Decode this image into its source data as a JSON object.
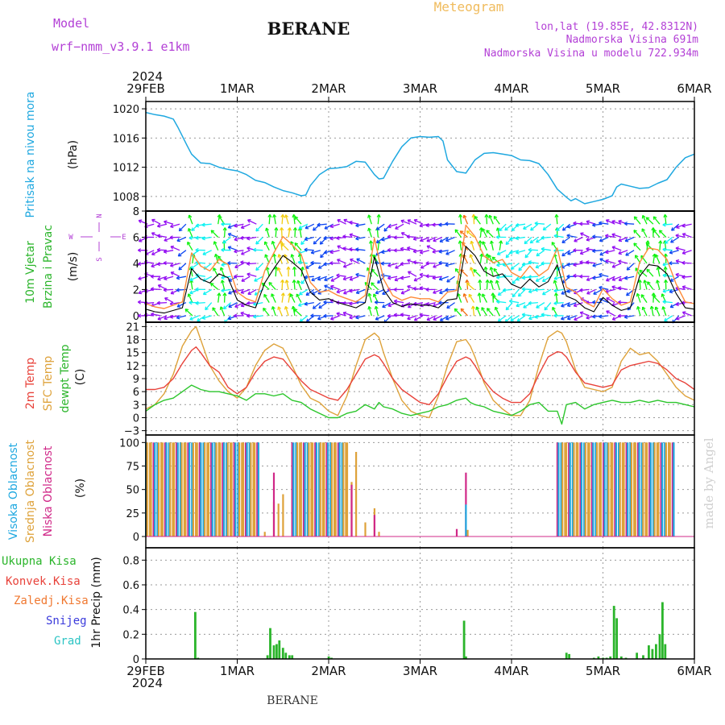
{
  "header": {
    "model_label": "Model",
    "model_name": "wrf−nmm_v3.9.1  e1km",
    "station": "BERANE",
    "meteogram": "Meteogram",
    "lonlat": "lon,lat (19.85E, 42.8312N)",
    "altitude": "Nadmorska Visina 691m",
    "model_altitude": "Nadmorska Visina u modelu 722.934m",
    "year_top": "2024",
    "year_bottom": "2024",
    "footer_station": "BERANE",
    "credit": "made by Angel"
  },
  "time_axis": {
    "labels": [
      "29FEB",
      "1MAR",
      "2MAR",
      "3MAR",
      "4MAR",
      "5MAR",
      "6MAR"
    ]
  },
  "panels": {
    "pressure": {
      "name": "Pritisak na nivou mora",
      "unit": "(hPa)",
      "ticks": [
        "1020",
        "1016",
        "1012",
        "1008"
      ],
      "color": "#1fa8e0"
    },
    "wind": {
      "name1": "10m Vjetar",
      "name2": "Brzina i Pravac",
      "unit": "(m/s)",
      "ticks": [
        "8",
        "6",
        "4",
        "2",
        "0"
      ],
      "compass": {
        "n": "N",
        "s": "S",
        "e": "E",
        "w": "W"
      }
    },
    "temp": {
      "t2m": "2m Temp",
      "sfc": "SFC Temp",
      "dew": "dewpt Temp",
      "unit": "(C)",
      "ticks": [
        "21",
        "18",
        "15",
        "12",
        "9",
        "6",
        "3",
        "0",
        "−3"
      ],
      "colors": {
        "t2m": "#e8423a",
        "sfc": "#dea23a",
        "dew": "#2cc62c"
      }
    },
    "cloud": {
      "high": "Visoka Oblacnost",
      "mid": "Srednja Oblacnost",
      "low": "Niska Oblacnost",
      "unit": "(%)",
      "ticks": [
        "100",
        "75",
        "50",
        "25",
        "0"
      ],
      "colors": {
        "high": "#1fa8e0",
        "mid": "#dea23a",
        "low": "#d02888"
      }
    },
    "precip": {
      "total": "Ukupna Kisa",
      "conv": "Konvek.Kisa",
      "frz": "Zaledj.Kisa",
      "snow": "Snijeg",
      "hail": "Grad",
      "unit": "1hr Precip (mm)",
      "ticks": [
        "0.8",
        "0.6",
        "0.4",
        "0.2",
        "0"
      ],
      "colors": {
        "total": "#2bb52b",
        "conv": "#e8423a",
        "frz": "#f07830",
        "snow": "#3b3bdc",
        "hail": "#2cc4c4"
      }
    }
  },
  "chart_data": [
    {
      "type": "line",
      "ylabel": "(hPa)",
      "ylim": [
        1006,
        1021
      ],
      "x_days": [
        0,
        0.1,
        0.2,
        0.3,
        0.35,
        0.45,
        0.5,
        0.6,
        0.7,
        0.8,
        0.9,
        1.0,
        1.1,
        1.2,
        1.3,
        1.4,
        1.5,
        1.6,
        1.7,
        1.75,
        1.8,
        1.9,
        2.0,
        2.1,
        2.2,
        2.3,
        2.4,
        2.5,
        2.55,
        2.6,
        2.7,
        2.8,
        2.9,
        3.0,
        3.1,
        3.2,
        3.25,
        3.3,
        3.4,
        3.5,
        3.6,
        3.7,
        3.8,
        3.9,
        4.0,
        4.1,
        4.2,
        4.3,
        4.4,
        4.5,
        4.6,
        4.65,
        4.7,
        4.8,
        4.9,
        5.0,
        5.1,
        5.15,
        5.2,
        5.3,
        5.4,
        5.5,
        5.6,
        5.7,
        5.8,
        5.9,
        6.0
      ],
      "series": [
        {
          "values": [
            1019.5,
            1019.2,
            1019.0,
            1018.6,
            1017.5,
            1015.0,
            1013.8,
            1012.6,
            1012.5,
            1012.0,
            1011.7,
            1011.5,
            1011.0,
            1010.2,
            1009.9,
            1009.3,
            1008.8,
            1008.5,
            1008.1,
            1008.2,
            1009.5,
            1011.0,
            1011.8,
            1011.9,
            1012.1,
            1012.8,
            1012.7,
            1011.0,
            1010.4,
            1010.5,
            1012.8,
            1014.8,
            1016.0,
            1016.2,
            1016.1,
            1016.2,
            1015.6,
            1013.0,
            1011.4,
            1011.2,
            1013.0,
            1013.9,
            1014.0,
            1013.8,
            1013.6,
            1013.0,
            1012.9,
            1012.5,
            1011.0,
            1009.0,
            1007.9,
            1007.4,
            1007.7,
            1007.0,
            1007.3,
            1007.6,
            1008.1,
            1009.3,
            1009.7,
            1009.4,
            1009.1,
            1009.2,
            1009.8,
            1010.3,
            1012.0,
            1013.3,
            1013.8
          ]
        }
      ]
    },
    {
      "type": "line",
      "ylabel": "(m/s)",
      "ylim": [
        -0.5,
        8
      ],
      "x_days": [
        0,
        0.1,
        0.2,
        0.3,
        0.4,
        0.5,
        0.6,
        0.7,
        0.8,
        0.9,
        1.0,
        1.1,
        1.2,
        1.3,
        1.4,
        1.5,
        1.6,
        1.7,
        1.8,
        1.9,
        2.0,
        2.1,
        2.2,
        2.3,
        2.4,
        2.5,
        2.6,
        2.7,
        2.8,
        2.9,
        3.0,
        3.1,
        3.2,
        3.3,
        3.4,
        3.5,
        3.6,
        3.7,
        3.8,
        3.9,
        4.0,
        4.1,
        4.2,
        4.3,
        4.4,
        4.5,
        4.6,
        4.7,
        4.8,
        4.9,
        5.0,
        5.1,
        5.2,
        5.3,
        5.4,
        5.5,
        5.6,
        5.7,
        5.8,
        5.9,
        6.0
      ],
      "series": [
        {
          "values": [
            0.5,
            0.3,
            0.2,
            0.4,
            0.6,
            3.6,
            2.8,
            2.5,
            3.2,
            2.9,
            1.2,
            0.8,
            0.6,
            2.5,
            3.6,
            4.6,
            4.1,
            3.5,
            1.8,
            1.2,
            1.3,
            1.0,
            0.8,
            0.6,
            1.0,
            4.5,
            2.0,
            1.0,
            0.7,
            0.9,
            0.8,
            0.8,
            0.6,
            1.2,
            1.3,
            5.3,
            4.6,
            3.4,
            3.0,
            3.2,
            2.4,
            2.1,
            2.8,
            2.2,
            2.6,
            3.9,
            1.5,
            1.2,
            0.6,
            0.3,
            1.4,
            0.8,
            0.4,
            0.6,
            3.0,
            3.9,
            3.8,
            3.2,
            1.7,
            0.6,
            0.5
          ]
        }
      ]
    },
    {
      "type": "line",
      "ylabel": "(C)",
      "ylim": [
        -4,
        22
      ],
      "x_days": [
        0,
        0.1,
        0.2,
        0.3,
        0.4,
        0.5,
        0.55,
        0.6,
        0.7,
        0.8,
        0.9,
        1.0,
        1.1,
        1.2,
        1.3,
        1.4,
        1.5,
        1.6,
        1.7,
        1.8,
        1.9,
        2.0,
        2.1,
        2.2,
        2.3,
        2.4,
        2.5,
        2.55,
        2.6,
        2.7,
        2.8,
        2.9,
        3.0,
        3.1,
        3.2,
        3.3,
        3.4,
        3.5,
        3.55,
        3.6,
        3.7,
        3.8,
        3.9,
        4.0,
        4.1,
        4.2,
        4.3,
        4.4,
        4.5,
        4.55,
        4.6,
        4.7,
        4.8,
        4.9,
        5.0,
        5.1,
        5.2,
        5.3,
        5.4,
        5.5,
        5.6,
        5.7,
        5.8,
        5.9,
        6.0
      ],
      "series": [
        {
          "name": "2m Temp",
          "values": [
            6.5,
            6.5,
            7.0,
            9.0,
            12.5,
            15.5,
            16.3,
            15.0,
            12.0,
            10.5,
            7.0,
            5.5,
            7.0,
            10.5,
            13.0,
            14.0,
            13.5,
            11.0,
            8.5,
            6.5,
            5.5,
            4.5,
            4.0,
            6.5,
            10.0,
            13.5,
            14.5,
            14.0,
            12.5,
            9.0,
            6.5,
            5.0,
            3.5,
            3.0,
            5.5,
            9.5,
            13.0,
            14.0,
            13.5,
            12.0,
            8.5,
            6.0,
            4.5,
            3.5,
            3.5,
            5.5,
            10.0,
            14.0,
            15.2,
            15.0,
            14.0,
            10.5,
            8.0,
            7.5,
            7.0,
            7.5,
            11.0,
            12.0,
            12.5,
            13.0,
            12.5,
            11.0,
            9.0,
            8.0,
            6.5
          ]
        },
        {
          "name": "SFC Temp",
          "values": [
            2.0,
            3.0,
            5.5,
            10.0,
            16.5,
            20.0,
            21.0,
            18.0,
            12.0,
            8.5,
            6.0,
            4.5,
            7.0,
            12.0,
            15.5,
            17.0,
            16.0,
            12.0,
            7.5,
            4.5,
            3.5,
            1.5,
            0.5,
            5.0,
            12.0,
            18.0,
            19.5,
            18.5,
            15.0,
            9.0,
            4.0,
            1.5,
            0.5,
            0.0,
            5.0,
            12.0,
            17.5,
            18.0,
            16.5,
            14.0,
            8.0,
            4.0,
            2.0,
            0.5,
            0.5,
            4.0,
            12.0,
            18.5,
            20.0,
            19.5,
            17.5,
            11.0,
            7.0,
            6.5,
            6.0,
            7.0,
            13.0,
            16.0,
            14.5,
            15.0,
            13.0,
            10.0,
            7.0,
            5.0,
            4.0
          ]
        },
        {
          "name": "dewpt Temp",
          "values": [
            1.5,
            3.0,
            4.0,
            4.5,
            6.0,
            7.5,
            7.0,
            6.5,
            6.0,
            6.0,
            5.5,
            5.0,
            4.0,
            5.5,
            5.5,
            5.0,
            5.5,
            4.0,
            3.5,
            2.0,
            1.0,
            0.0,
            0.0,
            1.0,
            1.5,
            3.0,
            2.0,
            3.5,
            2.5,
            2.0,
            1.0,
            0.5,
            1.0,
            1.5,
            2.5,
            3.0,
            4.0,
            4.5,
            3.5,
            3.0,
            2.5,
            1.5,
            1.0,
            0.5,
            1.5,
            3.0,
            3.5,
            1.5,
            1.5,
            -1.5,
            3.0,
            3.5,
            2.0,
            3.0,
            3.5,
            4.0,
            3.5,
            3.5,
            4.0,
            3.5,
            4.0,
            3.5,
            3.5,
            3.0,
            2.5
          ]
        }
      ]
    },
    {
      "type": "bar",
      "ylabel": "(%)",
      "ylim": [
        0,
        100
      ],
      "overcast_periods_days": [
        [
          0.0,
          1.25
        ],
        [
          1.6,
          2.2
        ],
        [
          4.5,
          5.8
        ]
      ],
      "x_days": [
        1.3,
        1.4,
        1.45,
        1.5,
        2.2,
        2.25,
        2.3,
        2.4,
        2.5,
        2.55,
        3.4,
        3.5,
        3.52
      ],
      "series": [
        {
          "name": "Srednja Oblacnost",
          "values": [
            5,
            37,
            35,
            45,
            58,
            58,
            90,
            15,
            30,
            5,
            0,
            0,
            7
          ]
        },
        {
          "name": "Niska Oblacnost",
          "values": [
            0,
            68,
            0,
            0,
            0,
            55,
            0,
            0,
            23,
            0,
            8,
            68,
            0
          ]
        },
        {
          "name": "Visoka Oblacnost",
          "values": [
            0,
            0,
            0,
            0,
            0,
            0,
            0,
            0,
            0,
            0,
            0,
            34,
            0
          ]
        }
      ]
    },
    {
      "type": "bar",
      "ylabel": "1hr Precip (mm)",
      "ylim": [
        0,
        0.9
      ],
      "x_days": [
        0.54,
        0.57,
        1.33,
        1.36,
        1.4,
        1.43,
        1.46,
        1.5,
        1.53,
        1.57,
        1.6,
        2.0,
        2.03,
        3.48,
        3.5,
        4.6,
        4.63,
        4.9,
        4.95,
        5.0,
        5.04,
        5.08,
        5.12,
        5.15,
        5.2,
        5.25,
        5.37,
        5.44,
        5.5,
        5.54,
        5.58,
        5.62,
        5.65,
        5.68
      ],
      "series": [
        {
          "name": "Ukupna Kisa",
          "values": [
            0.38,
            0.01,
            0.03,
            0.25,
            0.11,
            0.12,
            0.15,
            0.09,
            0.05,
            0.03,
            0.03,
            0.02,
            0.01,
            0.31,
            0.02,
            0.05,
            0.04,
            0.01,
            0.02,
            0.01,
            0.01,
            0.02,
            0.43,
            0.33,
            0.02,
            0.01,
            0.05,
            0.03,
            0.11,
            0.08,
            0.12,
            0.2,
            0.46,
            0.12
          ]
        }
      ]
    }
  ]
}
